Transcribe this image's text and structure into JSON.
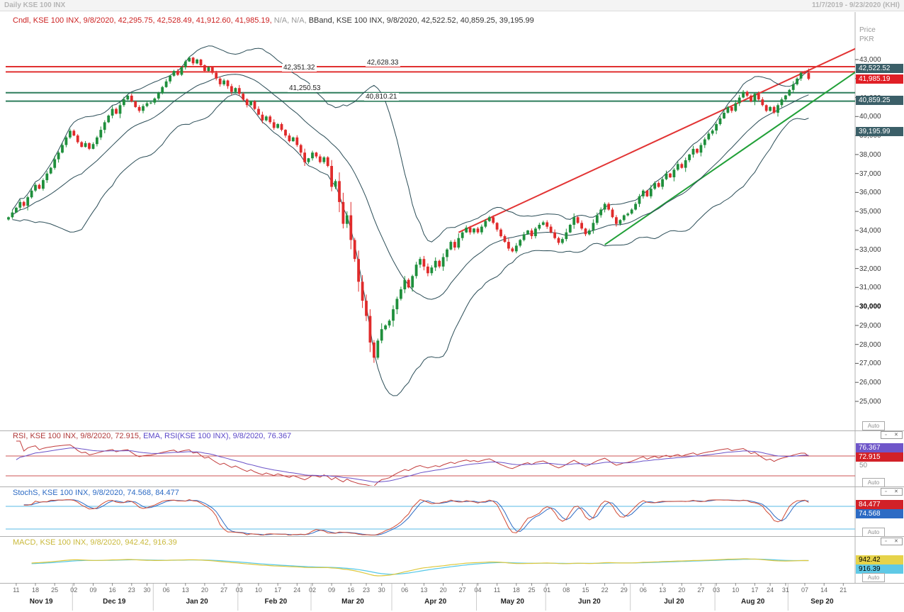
{
  "header": {
    "title": "Daily KSE 100 INX",
    "range": "11/7/2019 - 9/23/2020 (KHI)"
  },
  "main_legend": {
    "cndl": "Cndl, KSE 100 INX, 9/8/2020, 42,295.75, 42,528.49, 41,912.60, 41,985.19,",
    "na": " N/A, N/A, ",
    "bband": "BBand, KSE 100 INX, 9/8/2020, 42,522.52, 40,859.25, 39,195.99"
  },
  "price_axis": {
    "title_line1": "Price",
    "title_line2": "PKR",
    "auto_label": "Auto",
    "ticks": [
      {
        "label": "43,000",
        "value": 43000
      },
      {
        "label": "42,000",
        "value": 42000
      },
      {
        "label": "41,000",
        "value": 41000
      },
      {
        "label": "40,000",
        "value": 40000
      },
      {
        "label": "39,000",
        "value": 39000
      },
      {
        "label": "38,000",
        "value": 38000
      },
      {
        "label": "37,000",
        "value": 37000
      },
      {
        "label": "36,000",
        "value": 36000
      },
      {
        "label": "35,000",
        "value": 35000
      },
      {
        "label": "34,000",
        "value": 34000
      },
      {
        "label": "33,000",
        "value": 33000
      },
      {
        "label": "32,000",
        "value": 32000
      },
      {
        "label": "31,000",
        "value": 31000
      },
      {
        "label": "30,000",
        "value": 30000,
        "bold": true
      },
      {
        "label": "29,000",
        "value": 29000
      },
      {
        "label": "28,000",
        "value": 28000
      },
      {
        "label": "27,000",
        "value": 27000
      },
      {
        "label": "26,000",
        "value": 26000
      },
      {
        "label": "25,000",
        "value": 25000
      }
    ],
    "badges": [
      {
        "label": "42,522.52",
        "color": "#3b5f68",
        "price": 42522.52
      },
      {
        "label": "41,985.19",
        "color": "#e01f26",
        "price": 41985.19
      },
      {
        "label": "40,859.25",
        "color": "#3b5f68",
        "price": 40859.25
      },
      {
        "label": "39,195.99",
        "color": "#3b5f68",
        "price": 39195.99
      }
    ]
  },
  "levels": {
    "resistance": [
      {
        "label": "42,628.33",
        "value": 42628.33,
        "color": "#e03030"
      },
      {
        "label": "42,351.32",
        "value": 42351.32,
        "color": "#e03030"
      }
    ],
    "support": [
      {
        "label": "41,250.53",
        "value": 41250.53,
        "color": "#2e7d5c"
      },
      {
        "label": "40,810.21",
        "value": 40810.21,
        "color": "#2e7d5c"
      }
    ]
  },
  "trendlines": [
    {
      "color": "#e23434",
      "from_slot": 117,
      "from_price": 33900,
      "to_slot": 222,
      "to_price": 43750
    },
    {
      "color": "#21a038",
      "from_slot": 155,
      "from_price": 33250,
      "to_slot": 222,
      "to_price": 42600
    }
  ],
  "rsi_panel": {
    "legend_rsi": "RSI, KSE 100 INX, 9/8/2020, 72.915, ",
    "legend_ema": "EMA, RSI(KSE 100 INX), 9/8/2020, 76.367",
    "mid_label": "50",
    "auto_label": "Auto",
    "levels": [
      70,
      30
    ],
    "badges": [
      {
        "label": "76.367",
        "color": "#6f56c9"
      },
      {
        "label": "72.915",
        "color": "#d22128"
      }
    ]
  },
  "stoch_panel": {
    "legend": "StochS, KSE 100 INX, 9/8/2020, 74.568, 84.477",
    "auto_label": "Auto",
    "levels": [
      80,
      20
    ],
    "badges": [
      {
        "label": "84.477",
        "color": "#d22128"
      },
      {
        "label": "74.568",
        "color": "#2d6bc4"
      }
    ]
  },
  "macd_panel": {
    "legend": "MACD, KSE 100 INX, 9/8/2020, 942.42, 916.39",
    "auto_label": "Auto",
    "badges": [
      {
        "label": "942.42",
        "color": "#e6d34a",
        "text_color": "#000000"
      },
      {
        "label": "916.39",
        "color": "#5fc9e6",
        "text_color": "#000000"
      }
    ]
  },
  "x_axis": {
    "date_ticks": [
      {
        "label": "11",
        "slot": 2
      },
      {
        "label": "18",
        "slot": 7
      },
      {
        "label": "25",
        "slot": 12
      },
      {
        "label": "02",
        "slot": 17
      },
      {
        "label": "09",
        "slot": 22
      },
      {
        "label": "16",
        "slot": 27
      },
      {
        "label": "23",
        "slot": 32
      },
      {
        "label": "30",
        "slot": 36
      },
      {
        "label": "06",
        "slot": 41
      },
      {
        "label": "13",
        "slot": 46
      },
      {
        "label": "20",
        "slot": 51
      },
      {
        "label": "27",
        "slot": 56
      },
      {
        "label": "03",
        "slot": 60
      },
      {
        "label": "10",
        "slot": 65
      },
      {
        "label": "17",
        "slot": 70
      },
      {
        "label": "24",
        "slot": 75
      },
      {
        "label": "02",
        "slot": 79
      },
      {
        "label": "09",
        "slot": 84
      },
      {
        "label": "16",
        "slot": 89
      },
      {
        "label": "23",
        "slot": 93
      },
      {
        "label": "30",
        "slot": 97
      },
      {
        "label": "06",
        "slot": 103
      },
      {
        "label": "13",
        "slot": 108
      },
      {
        "label": "20",
        "slot": 113
      },
      {
        "label": "27",
        "slot": 118
      },
      {
        "label": "04",
        "slot": 122
      },
      {
        "label": "11",
        "slot": 127
      },
      {
        "label": "18",
        "slot": 132
      },
      {
        "label": "25",
        "slot": 136
      },
      {
        "label": "01",
        "slot": 140
      },
      {
        "label": "08",
        "slot": 145
      },
      {
        "label": "15",
        "slot": 150
      },
      {
        "label": "22",
        "slot": 155
      },
      {
        "label": "29",
        "slot": 160
      },
      {
        "label": "06",
        "slot": 165
      },
      {
        "label": "13",
        "slot": 170
      },
      {
        "label": "20",
        "slot": 175
      },
      {
        "label": "27",
        "slot": 180
      },
      {
        "label": "03",
        "slot": 184
      },
      {
        "label": "10",
        "slot": 189
      },
      {
        "label": "17",
        "slot": 194
      },
      {
        "label": "24",
        "slot": 198
      },
      {
        "label": "31",
        "slot": 202
      },
      {
        "label": "07",
        "slot": 207
      },
      {
        "label": "14",
        "slot": 212
      },
      {
        "label": "21",
        "slot": 217
      }
    ],
    "months": [
      {
        "label": "Nov 19",
        "start": 0,
        "end": 17
      },
      {
        "label": "Dec 19",
        "start": 17,
        "end": 38
      },
      {
        "label": "Jan 20",
        "start": 38,
        "end": 60
      },
      {
        "label": "Feb 20",
        "start": 60,
        "end": 79
      },
      {
        "label": "Mar 20",
        "start": 79,
        "end": 100
      },
      {
        "label": "Apr 20",
        "start": 100,
        "end": 122
      },
      {
        "label": "May 20",
        "start": 122,
        "end": 140
      },
      {
        "label": "Jun 20",
        "start": 140,
        "end": 162
      },
      {
        "label": "Jul 20",
        "start": 162,
        "end": 184
      },
      {
        "label": "Aug 20",
        "start": 184,
        "end": 203
      },
      {
        "label": "Sep 20",
        "start": 203,
        "end": 220
      }
    ]
  },
  "colors": {
    "candle_up": "#1f8f3c",
    "candle_down": "#e02b2b",
    "bband": "#2b4d57",
    "rsi_line": "#c23b3b",
    "rsi_ema_line": "#6a52c8",
    "stoch_k_line": "#d24a32",
    "stoch_d_line": "#2d6bc4",
    "macd_line": "#ddc83e",
    "macd_signal_line": "#55c8e8",
    "rsi_level_line": "#cc5555",
    "stoch_level_line": "#8fd0ee"
  },
  "chart_data": {
    "type": "candlestick+indicators",
    "instrument": "KSE 100 INX",
    "interval": "Daily",
    "ylim": [
      24600,
      43600
    ],
    "closes": [
      34700,
      34950,
      35200,
      35500,
      35300,
      35750,
      36100,
      36400,
      36200,
      36650,
      37000,
      37300,
      37750,
      38100,
      38500,
      38900,
      39250,
      39000,
      38650,
      38400,
      38600,
      38300,
      38550,
      38900,
      39300,
      39700,
      40050,
      40400,
      40150,
      40600,
      40900,
      41100,
      40800,
      40500,
      40300,
      40550,
      40700,
      40735,
      40950,
      41250,
      41550,
      41850,
      42150,
      42400,
      42200,
      42600,
      42900,
      43100,
      42800,
      43000,
      42700,
      42400,
      42600,
      42300,
      42000,
      41700,
      41900,
      41600,
      41300,
      41500,
      41200,
      40900,
      40600,
      40800,
      40400,
      40100,
      39800,
      40000,
      39700,
      39400,
      39600,
      39300,
      39000,
      38700,
      38900,
      38500,
      38100,
      37600,
      37800,
      38100,
      37900,
      37600,
      37850,
      37400,
      36300,
      36600,
      35500,
      34350,
      34800,
      33500,
      32500,
      31300,
      30300,
      29500,
      28100,
      27300,
      28200,
      28800,
      29000,
      29250,
      29850,
      30400,
      30900,
      31400,
      31000,
      31600,
      32200,
      32500,
      32100,
      31750,
      32050,
      32400,
      32100,
      32600,
      33000,
      33400,
      33100,
      33600,
      33900,
      34150,
      33900,
      34100,
      33900,
      34200,
      34500,
      34700,
      34400,
      34050,
      33700,
      33400,
      33050,
      32900,
      33200,
      33500,
      33800,
      34000,
      33700,
      34100,
      34300,
      34430,
      34200,
      33900,
      33600,
      33350,
      33550,
      33900,
      34300,
      34700,
      34400,
      34100,
      33800,
      34000,
      34400,
      34800,
      35100,
      35400,
      35100,
      34700,
      34350,
      34550,
      34800,
      34890,
      35100,
      35400,
      35800,
      36100,
      35800,
      36200,
      36500,
      36300,
      36700,
      37000,
      36800,
      37200,
      37500,
      37300,
      37700,
      38000,
      38300,
      38100,
      38500,
      38800,
      39100,
      39260,
      39600,
      39900,
      40200,
      40500,
      40300,
      40700,
      41000,
      41300,
      41100,
      40800,
      41200,
      40900,
      40600,
      40300,
      40500,
      40200,
      40600,
      40900,
      41110,
      41400,
      41700,
      42000,
      42300,
      42295.75,
      41985.19
    ],
    "last_candle": {
      "open": 42295.75,
      "high": 42528.49,
      "low": 41912.6,
      "close": 41985.19
    },
    "bollinger": {
      "period": 20,
      "upper_last": 42522.52,
      "middle_last": 40859.25,
      "lower_last": 39195.99
    },
    "rsi_last": 72.915,
    "rsi_ema_last": 76.367,
    "stoch_d_last": 84.477,
    "stoch_k_last": 74.568,
    "macd_last": 942.42,
    "macd_signal_last": 916.39
  }
}
